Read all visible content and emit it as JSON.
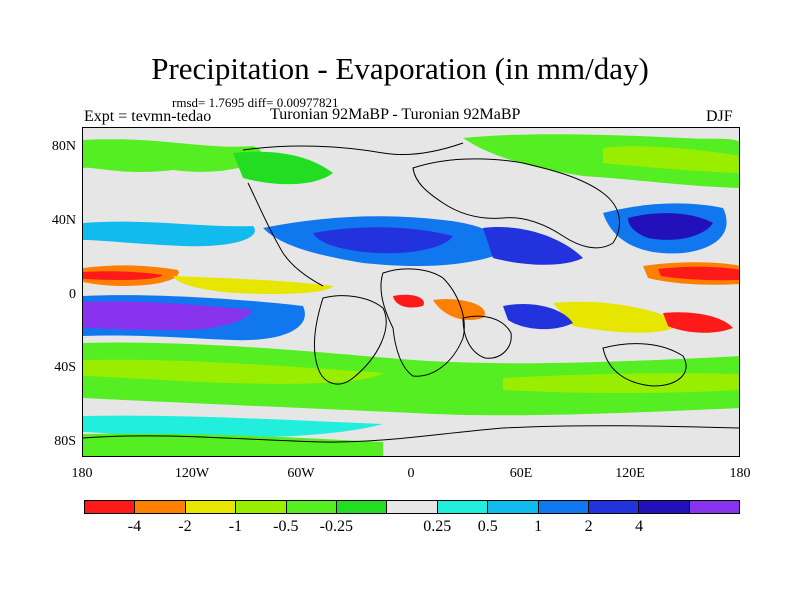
{
  "title": "Precipitation - Evaporation (in mm/day)",
  "stats": "rmsd= 1.7695 diff= 0.00977821",
  "expt": "Expt = tevmn-tedao",
  "subtitle": "Turonian  92MaBP - Turonian  92MaBP",
  "season": "DJF",
  "lat_labels": [
    "80N",
    "40N",
    "0",
    "40S",
    "80S"
  ],
  "lon_labels": [
    "180",
    "120W",
    "60W",
    "0",
    "60E",
    "120E",
    "180"
  ],
  "colorbar": {
    "colors": [
      "#ff1a1a",
      "#ff8000",
      "#e6e600",
      "#99ee00",
      "#55ee22",
      "#22dd22",
      "#e6e6e6",
      "#22eedd",
      "#11bbee",
      "#1177ee",
      "#2233dd",
      "#2211bb",
      "#8833ee"
    ],
    "labels": [
      "-4",
      "-2",
      "-1",
      "-0.5",
      "-0.25",
      "0.25",
      "0.5",
      "1",
      "2",
      "4"
    ]
  },
  "map": {
    "background_color": "#e6e6e6",
    "coastline_color": "#000000"
  }
}
